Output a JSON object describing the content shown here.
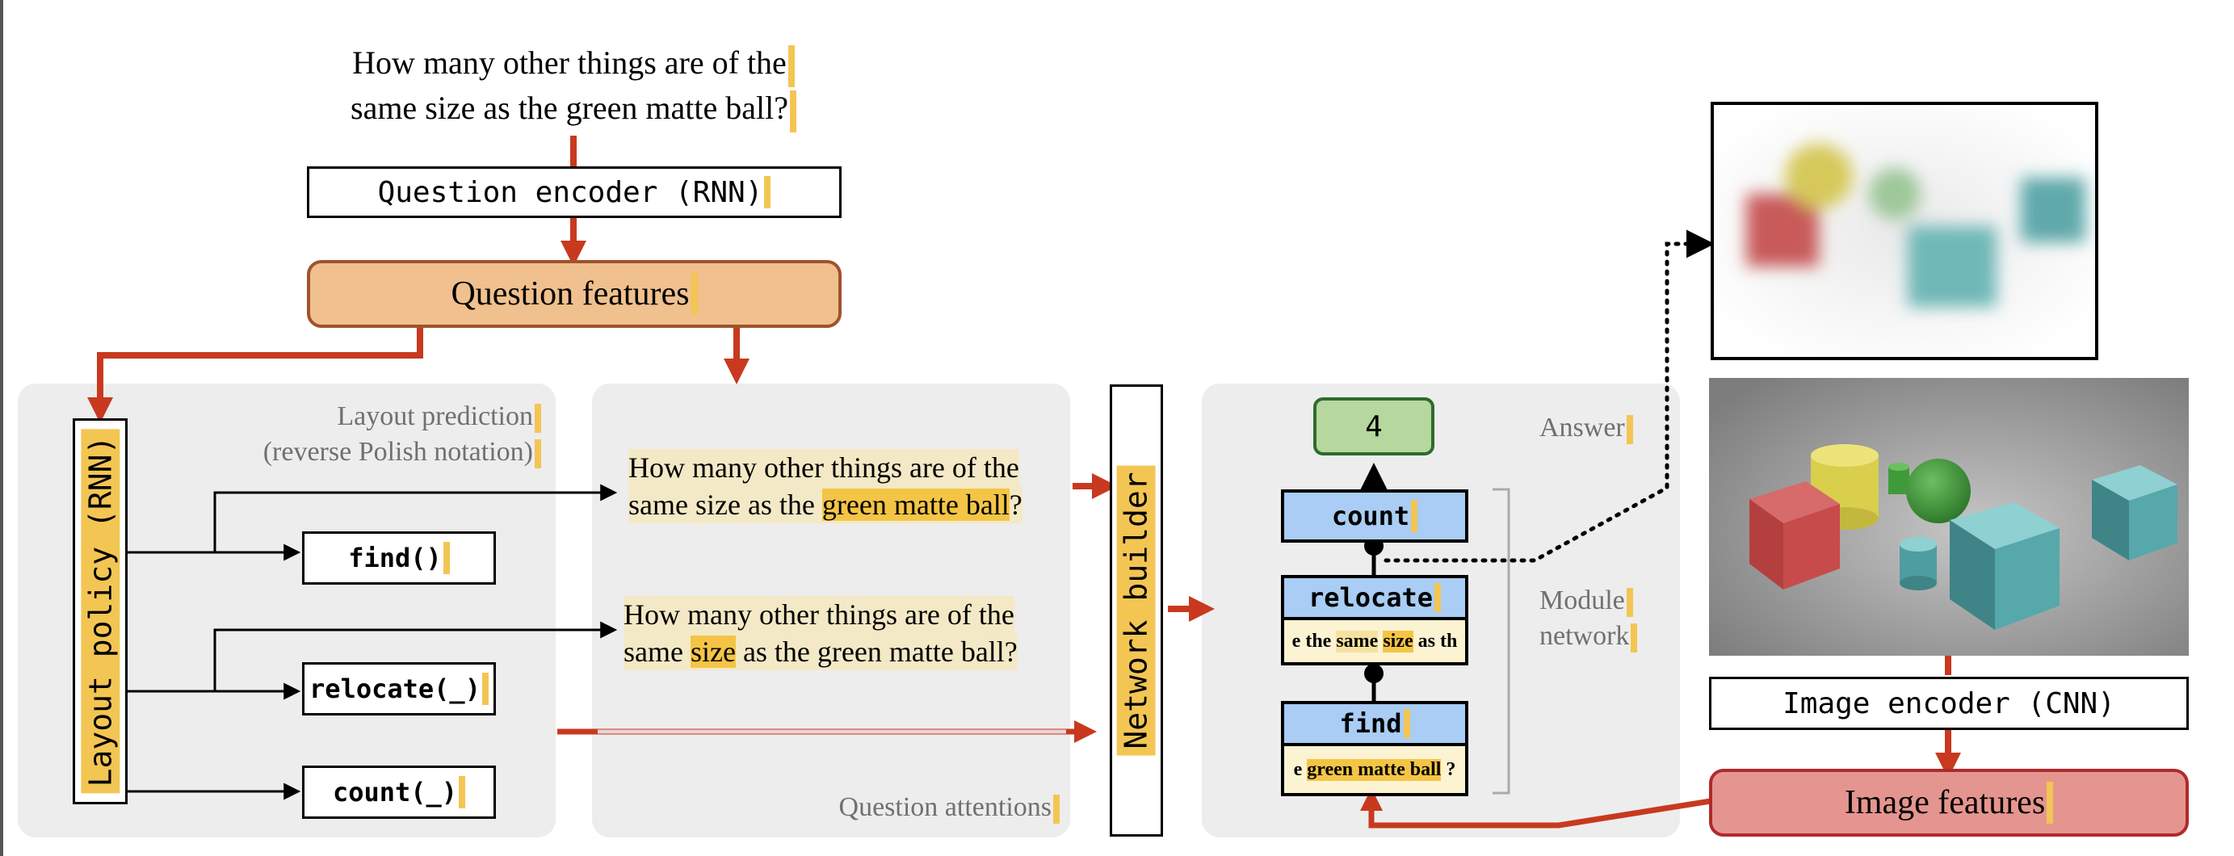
{
  "question": {
    "line1": "How many other things are of the",
    "line2": "same size as the green matte ball?"
  },
  "nodes": {
    "question_encoder": "Question encoder (RNN)",
    "question_features": "Question features",
    "layout_policy": "Layout policy (RNN)",
    "layout_prediction_1": "Layout prediction",
    "layout_prediction_2": "(reverse Polish notation)",
    "network_builder": "Network builder",
    "question_attentions": "Question attentions",
    "answer_label": "Answer",
    "module_network_1": "Module",
    "module_network_2": "network",
    "image_encoder": "Image encoder (CNN)",
    "image_features": "Image features"
  },
  "layout_ops": {
    "find": "find()",
    "relocate": "relocate(_)",
    "count": "count(_)"
  },
  "attention_1": {
    "line1": "How many other things are of the",
    "line2_pre": "same size as the ",
    "line2_hl": "green matte ball",
    "line2_post": "?"
  },
  "attention_2": {
    "line1": "How many other things are of the",
    "line2_pre": "same ",
    "line2_hl": "size",
    "line2_post": " as the green matte ball?"
  },
  "modules": {
    "answer": "4",
    "count": "count",
    "relocate": "relocate",
    "relocate_text_1": "e the",
    "relocate_text_2": "same",
    "relocate_text_3": "size",
    "relocate_text_4": "as th",
    "find": "find",
    "find_text_1": "e",
    "find_text_2": "green matte ball",
    "find_text_3": "?"
  },
  "colors": {
    "arrow_red": "#c8391f",
    "question_features_fill": "#f0c08e",
    "image_features_fill": "#e5958f",
    "module_blue": "#a9cdf4",
    "answer_green": "#b6d79d",
    "highlight_yellow": "#f4c545"
  }
}
